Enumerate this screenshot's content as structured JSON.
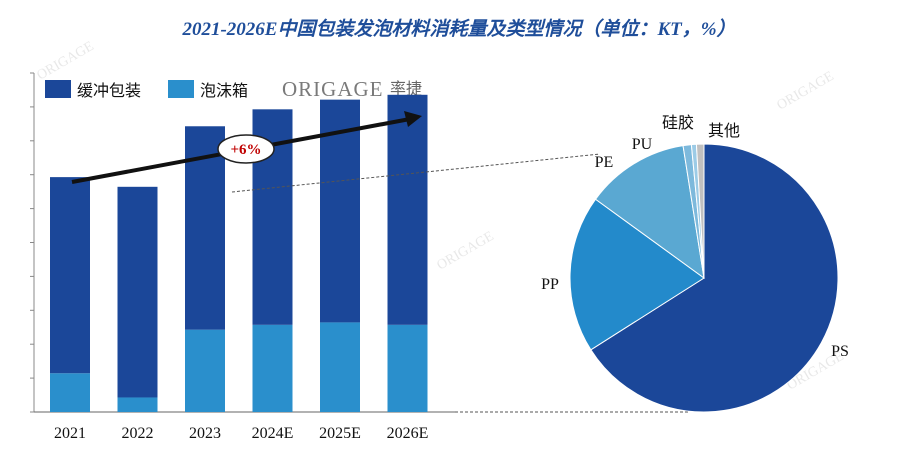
{
  "chart_data": [
    {
      "type": "bar",
      "stacked": true,
      "title": "2021-2026E中国包装发泡材料消耗量及类型情况（单位：KT，%）",
      "categories": [
        "2021",
        "2022",
        "2023",
        "2024E",
        "2025E",
        "2026E"
      ],
      "series": [
        {
          "name": "泡沫箱",
          "color": "#2a8fcc",
          "values": [
            8,
            3,
            17,
            18,
            18.5,
            18
          ]
        },
        {
          "name": "缓冲包装",
          "color": "#1b4799",
          "values": [
            40.5,
            43.5,
            42,
            44.5,
            46,
            47.5
          ]
        }
      ],
      "ylim": [
        0,
        70
      ],
      "y_ticks": 11,
      "xlabel": "",
      "ylabel": "",
      "legend": "top-left",
      "annotation": {
        "text": "+6%",
        "kind": "growth-arrow"
      }
    },
    {
      "type": "pie",
      "slices": [
        {
          "label": "PS",
          "value": 66,
          "color": "#1b4799"
        },
        {
          "label": "PP",
          "value": 19,
          "color": "#238acb"
        },
        {
          "label": "PE",
          "value": 12.5,
          "color": "#5aa8d2"
        },
        {
          "label": "PU",
          "value": 1,
          "color": "#7db9dc"
        },
        {
          "label": "硅胶",
          "value": 0.6,
          "color": "#9ccbe6"
        },
        {
          "label": "其他",
          "value": 0.9,
          "color": "#c0c0c0"
        }
      ],
      "start_angle_deg": 0,
      "direction": "clockwise"
    }
  ],
  "logo": {
    "latin": "ORIGAGE",
    "cn": "率捷"
  }
}
